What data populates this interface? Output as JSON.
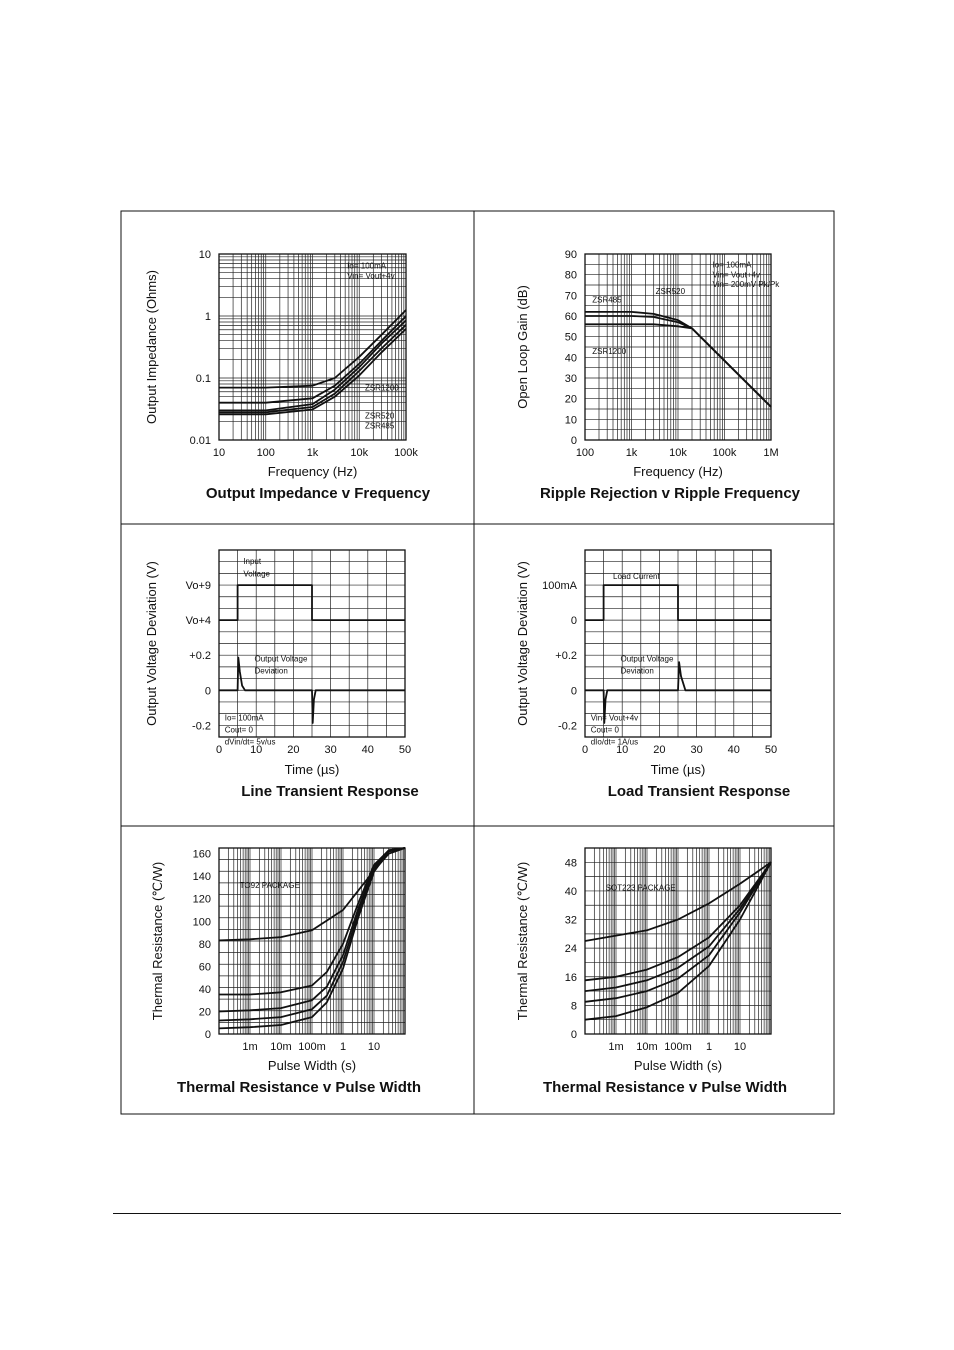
{
  "charts": [
    {
      "id": "impedance",
      "type": "line",
      "title": "Output Impedance v Frequency",
      "xlabel": "Frequency (Hz)",
      "ylabel": "Output Impedance (Ohms)",
      "xscale": "log",
      "yscale": "log",
      "xlim": [
        10,
        100000
      ],
      "ylim": [
        0.01,
        10
      ],
      "xticks": [
        {
          "v": 10,
          "t": "10"
        },
        {
          "v": 100,
          "t": "100"
        },
        {
          "v": 1000,
          "t": "1k"
        },
        {
          "v": 10000,
          "t": "10k"
        },
        {
          "v": 100000,
          "t": "100k"
        }
      ],
      "yticks": [
        {
          "v": 0.01,
          "t": "0.01"
        },
        {
          "v": 0.1,
          "t": "0.1"
        },
        {
          "v": 1,
          "t": "1"
        },
        {
          "v": 10,
          "t": "10"
        }
      ],
      "annotations": [
        {
          "t": "Io= 100mA",
          "x": 5000,
          "y": 6.5
        },
        {
          "t": "Vin= Vout+4v",
          "x": 5000,
          "y": 4.5
        },
        {
          "t": "ZSR1200",
          "x": 12000,
          "y": 0.07
        },
        {
          "t": "ZSR520",
          "x": 12000,
          "y": 0.025
        },
        {
          "t": "ZSR485",
          "x": 12000,
          "y": 0.017
        }
      ],
      "series": [
        {
          "name": "ZSR1200",
          "x": [
            10,
            100,
            1000,
            3000,
            10000,
            30000,
            100000
          ],
          "y": [
            0.07,
            0.07,
            0.075,
            0.1,
            0.22,
            0.5,
            1.25
          ]
        },
        {
          "name": "",
          "x": [
            10,
            100,
            1000,
            3000,
            10000,
            30000,
            100000
          ],
          "y": [
            0.04,
            0.04,
            0.047,
            0.075,
            0.17,
            0.4,
            1.0
          ]
        },
        {
          "name": "ZSR520",
          "x": [
            10,
            100,
            1000,
            3000,
            10000,
            30000,
            100000
          ],
          "y": [
            0.03,
            0.03,
            0.038,
            0.065,
            0.15,
            0.36,
            0.85
          ]
        },
        {
          "name": "",
          "x": [
            10,
            100,
            1000,
            3000,
            10000,
            30000,
            100000
          ],
          "y": [
            0.028,
            0.028,
            0.034,
            0.056,
            0.13,
            0.3,
            0.72
          ]
        },
        {
          "name": "ZSR485",
          "x": [
            10,
            100,
            1000,
            3000,
            10000,
            30000,
            100000
          ],
          "y": [
            0.026,
            0.026,
            0.031,
            0.05,
            0.11,
            0.26,
            0.62
          ]
        }
      ]
    },
    {
      "id": "ripple",
      "type": "line",
      "title": "Ripple Rejection v Ripple Frequency",
      "xlabel": "Frequency (Hz)",
      "ylabel": "Open Loop Gain (dB)",
      "xscale": "log",
      "yscale": "linear",
      "xlim": [
        100,
        1000000
      ],
      "ylim": [
        0,
        90
      ],
      "xticks": [
        {
          "v": 100,
          "t": "100"
        },
        {
          "v": 1000,
          "t": "1k"
        },
        {
          "v": 10000,
          "t": "10k"
        },
        {
          "v": 100000,
          "t": "100k"
        },
        {
          "v": 1000000,
          "t": "1M"
        }
      ],
      "yticks": [
        {
          "v": 0,
          "t": "0"
        },
        {
          "v": 10,
          "t": "10"
        },
        {
          "v": 20,
          "t": "20"
        },
        {
          "v": 30,
          "t": "30"
        },
        {
          "v": 40,
          "t": "40"
        },
        {
          "v": 50,
          "t": "50"
        },
        {
          "v": 60,
          "t": "60"
        },
        {
          "v": 70,
          "t": "70"
        },
        {
          "v": 80,
          "t": "80"
        },
        {
          "v": 90,
          "t": "90"
        }
      ],
      "annotations": [
        {
          "t": "Io= 100mA",
          "x": 50000,
          "y": 85
        },
        {
          "t": "Vin= Vout+4v",
          "x": 50000,
          "y": 80
        },
        {
          "t": "Vin= 200mV Pk/Pk",
          "x": 50000,
          "y": 75.5
        },
        {
          "t": "ZSR520",
          "x": 3000,
          "y": 72
        },
        {
          "t": "ZSR485",
          "x": 130,
          "y": 68
        },
        {
          "t": "ZSR1200",
          "x": 130,
          "y": 43
        }
      ],
      "series": [
        {
          "name": "ZSR485",
          "x": [
            100,
            1000,
            3000,
            10000,
            20000,
            1000000
          ],
          "y": [
            62,
            62,
            61,
            58,
            54,
            16
          ]
        },
        {
          "name": "ZSR520",
          "x": [
            100,
            1000,
            3000,
            10000,
            20000,
            1000000
          ],
          "y": [
            60,
            60,
            59.5,
            57,
            54,
            16
          ]
        },
        {
          "name": "ZSR1200",
          "x": [
            100,
            1000,
            3000,
            10000,
            20000,
            1000000
          ],
          "y": [
            56,
            56,
            56,
            55,
            54,
            16
          ]
        }
      ]
    },
    {
      "id": "line_transient",
      "type": "line",
      "title": "Line Transient Response",
      "xlabel": "Time (µs)",
      "ylabel": "Output Voltage Deviation (V)",
      "xscale": "linear",
      "yscale": "linear",
      "xlim": [
        0,
        50
      ],
      "ylim": [
        0,
        200
      ],
      "xticks": [
        {
          "v": 0,
          "t": "0"
        },
        {
          "v": 10,
          "t": "10"
        },
        {
          "v": 20,
          "t": "20"
        },
        {
          "v": 30,
          "t": "30"
        },
        {
          "v": 40,
          "t": "40"
        },
        {
          "v": 50,
          "t": "50"
        }
      ],
      "yticks": [
        {
          "v": 162.5,
          "t": "Vo+9"
        },
        {
          "v": 125,
          "t": "Vo+4"
        },
        {
          "v": 87.5,
          "t": "+0.2"
        },
        {
          "v": 50,
          "t": "0"
        },
        {
          "v": 12.5,
          "t": "-0.2"
        }
      ],
      "annotations": [
        {
          "t": "Input",
          "x": 6,
          "y": 188
        },
        {
          "t": "Voltage",
          "x": 6,
          "y": 175
        },
        {
          "t": "Output Voltage",
          "x": 9,
          "y": 84
        },
        {
          "t": "Deviation",
          "x": 9,
          "y": 71
        },
        {
          "t": "Io= 100mA",
          "x": 1,
          "y": 21
        },
        {
          "t": "Cout= 0",
          "x": 1,
          "y": 8
        },
        {
          "t": "dVin/dt= 5v/us",
          "x": 1,
          "y": -5
        }
      ],
      "series": [
        {
          "name": "Input Voltage",
          "x": [
            0,
            5,
            5,
            25,
            25,
            50
          ],
          "y": [
            125,
            125,
            162.5,
            162.5,
            125,
            125
          ]
        },
        {
          "name": "Output Voltage Deviation",
          "x": [
            0,
            5,
            5.2,
            5.6,
            6.2,
            7,
            25,
            25.2,
            25.5,
            26,
            50
          ],
          "y": [
            50,
            50,
            85,
            70,
            55,
            50,
            50,
            15,
            40,
            50,
            50
          ]
        }
      ]
    },
    {
      "id": "load_transient",
      "type": "line",
      "title": "Load Transient Response",
      "xlabel": "Time (µs)",
      "ylabel": "Output Voltage Deviation (V)",
      "xscale": "linear",
      "yscale": "linear",
      "xlim": [
        0,
        50
      ],
      "ylim": [
        0,
        200
      ],
      "xticks": [
        {
          "v": 0,
          "t": "0"
        },
        {
          "v": 10,
          "t": "10"
        },
        {
          "v": 20,
          "t": "20"
        },
        {
          "v": 30,
          "t": "30"
        },
        {
          "v": 40,
          "t": "40"
        },
        {
          "v": 50,
          "t": "50"
        }
      ],
      "yticks": [
        {
          "v": 162.5,
          "t": "100mA"
        },
        {
          "v": 125,
          "t": "0"
        },
        {
          "v": 87.5,
          "t": "+0.2"
        },
        {
          "v": 50,
          "t": "0"
        },
        {
          "v": 12.5,
          "t": "-0.2"
        }
      ],
      "annotations": [
        {
          "t": "Load Current",
          "x": 7,
          "y": 172
        },
        {
          "t": "Output Voltage",
          "x": 9,
          "y": 84
        },
        {
          "t": "Deviation",
          "x": 9,
          "y": 71
        },
        {
          "t": "Vin= Vout+4v",
          "x": 1,
          "y": 21
        },
        {
          "t": "Cout= 0",
          "x": 1,
          "y": 8
        },
        {
          "t": "dIo/dt= 1A/us",
          "x": 1,
          "y": -5
        }
      ],
      "series": [
        {
          "name": "Load Current",
          "x": [
            0,
            5,
            5,
            25,
            25,
            50
          ],
          "y": [
            125,
            125,
            162.5,
            162.5,
            125,
            125
          ]
        },
        {
          "name": "Output Voltage Deviation",
          "x": [
            0,
            5,
            5.2,
            5.5,
            6,
            25,
            25.3,
            25.8,
            27,
            50
          ],
          "y": [
            50,
            50,
            15,
            40,
            50,
            50,
            80,
            65,
            50,
            50
          ]
        }
      ]
    },
    {
      "id": "thermal_to92",
      "type": "line",
      "title": "Thermal Resistance v Pulse Width",
      "xlabel": "Pulse Width (s)",
      "ylabel": "Thermal Resistance (℃/W)",
      "xscale": "log",
      "yscale": "linear",
      "xlim": [
        0.0001,
        100
      ],
      "ylim": [
        0,
        165
      ],
      "xticks": [
        {
          "v": 0.001,
          "t": "1m"
        },
        {
          "v": 0.01,
          "t": "10m"
        },
        {
          "v": 0.1,
          "t": "100m"
        },
        {
          "v": 1,
          "t": "1"
        },
        {
          "v": 10,
          "t": "10"
        }
      ],
      "yticks": [
        {
          "v": 0,
          "t": "0"
        },
        {
          "v": 20,
          "t": "20"
        },
        {
          "v": 40,
          "t": "40"
        },
        {
          "v": 60,
          "t": "60"
        },
        {
          "v": 80,
          "t": "80"
        },
        {
          "v": 100,
          "t": "100"
        },
        {
          "v": 120,
          "t": "120"
        },
        {
          "v": 140,
          "t": "140"
        },
        {
          "v": 160,
          "t": "160"
        }
      ],
      "annotations": [
        {
          "t": "TO92 PACKAGE",
          "x": 0.0004,
          "y": 132
        }
      ],
      "series": [
        {
          "name": "",
          "x": [
            0.0001,
            0.001,
            0.01,
            0.1,
            1,
            10,
            30,
            100
          ],
          "y": [
            83,
            84,
            86,
            92,
            110,
            145,
            160,
            165
          ]
        },
        {
          "name": "",
          "x": [
            0.0001,
            0.001,
            0.01,
            0.1,
            0.3,
            1,
            3,
            10,
            30,
            100
          ],
          "y": [
            35,
            35,
            37,
            43,
            55,
            80,
            115,
            150,
            163,
            165
          ]
        },
        {
          "name": "",
          "x": [
            0.0001,
            0.001,
            0.01,
            0.1,
            0.3,
            1,
            3,
            10,
            30,
            100
          ],
          "y": [
            20,
            21,
            23,
            30,
            42,
            70,
            110,
            148,
            163,
            165
          ]
        },
        {
          "name": "",
          "x": [
            0.0001,
            0.001,
            0.01,
            0.1,
            0.3,
            1,
            3,
            10,
            30,
            100
          ],
          "y": [
            12,
            13,
            15,
            22,
            34,
            64,
            106,
            146,
            162,
            165
          ]
        },
        {
          "name": "",
          "x": [
            0.0001,
            0.001,
            0.01,
            0.1,
            0.3,
            1,
            3,
            10,
            30,
            100
          ],
          "y": [
            5,
            6,
            8,
            15,
            28,
            58,
            102,
            144,
            162,
            165
          ]
        }
      ]
    },
    {
      "id": "thermal_sot223",
      "type": "line",
      "title": "Thermal Resistance v Pulse Width",
      "xlabel": "Pulse Width (s)",
      "ylabel": "Thermal Resistance (℃/W)",
      "xscale": "log",
      "yscale": "linear",
      "xlim": [
        0.0001,
        100
      ],
      "ylim": [
        0,
        52
      ],
      "xticks": [
        {
          "v": 0.001,
          "t": "1m"
        },
        {
          "v": 0.01,
          "t": "10m"
        },
        {
          "v": 0.1,
          "t": "100m"
        },
        {
          "v": 1,
          "t": "1"
        },
        {
          "v": 10,
          "t": "10"
        }
      ],
      "yticks": [
        {
          "v": 0,
          "t": "0"
        },
        {
          "v": 8,
          "t": "8"
        },
        {
          "v": 16,
          "t": "16"
        },
        {
          "v": 24,
          "t": "24"
        },
        {
          "v": 32,
          "t": "32"
        },
        {
          "v": 40,
          "t": "40"
        },
        {
          "v": 48,
          "t": "48"
        }
      ],
      "annotations": [
        {
          "t": "SOT223 PACKAGE",
          "x": 0.0004,
          "y": 41
        }
      ],
      "series": [
        {
          "name": "",
          "x": [
            0.0001,
            0.001,
            0.01,
            0.1,
            1,
            10,
            100
          ],
          "y": [
            26,
            27.5,
            29,
            32,
            36.5,
            42,
            48
          ]
        },
        {
          "name": "",
          "x": [
            0.0001,
            0.001,
            0.01,
            0.1,
            1,
            10,
            100
          ],
          "y": [
            15,
            16,
            18,
            21.5,
            27,
            36,
            48
          ]
        },
        {
          "name": "",
          "x": [
            0.0001,
            0.001,
            0.01,
            0.1,
            1,
            10,
            100
          ],
          "y": [
            12,
            13,
            15,
            18.5,
            24.5,
            35,
            48
          ]
        },
        {
          "name": "",
          "x": [
            0.0001,
            0.001,
            0.01,
            0.1,
            1,
            10,
            100
          ],
          "y": [
            9,
            10,
            12,
            15.5,
            22,
            34,
            48
          ]
        },
        {
          "name": "",
          "x": [
            0.0001,
            0.001,
            0.01,
            0.1,
            1,
            10,
            100
          ],
          "y": [
            4,
            5,
            7.5,
            11.5,
            19,
            32,
            48
          ]
        }
      ]
    }
  ]
}
